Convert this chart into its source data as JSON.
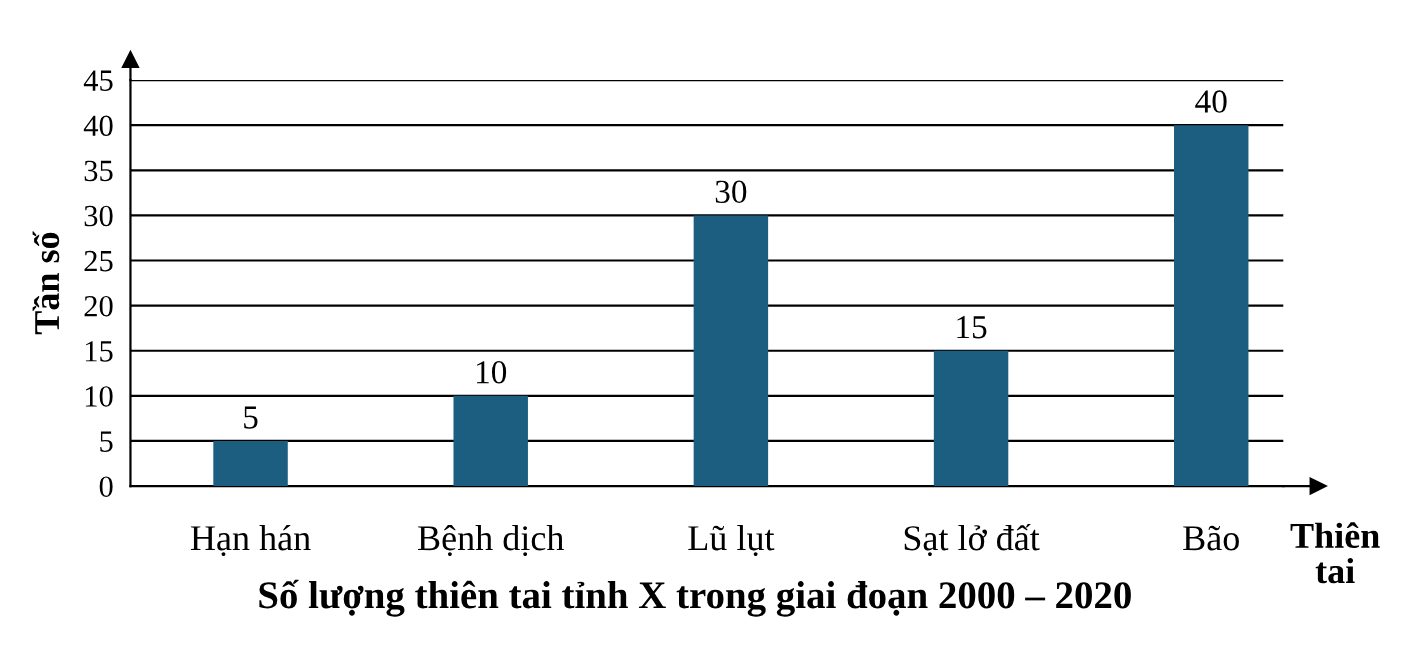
{
  "chart_data": {
    "type": "bar",
    "title": "Số lượng thiên tai tỉnh X trong giai đoạn 2000 – 2020",
    "xlabel": "Thiên\ntai",
    "ylabel": "Tần số",
    "categories": [
      "Hạn hán",
      "Bệnh dịch",
      "Lũ lụt",
      "Sạt lở đất",
      "Bão"
    ],
    "values": [
      5,
      10,
      30,
      15,
      40
    ],
    "color": "#1b5e80",
    "ylim": [
      0,
      45
    ],
    "yticks": [
      0,
      5,
      10,
      15,
      20,
      25,
      30,
      35,
      40,
      45
    ],
    "grid": "y",
    "data_labels": true
  }
}
